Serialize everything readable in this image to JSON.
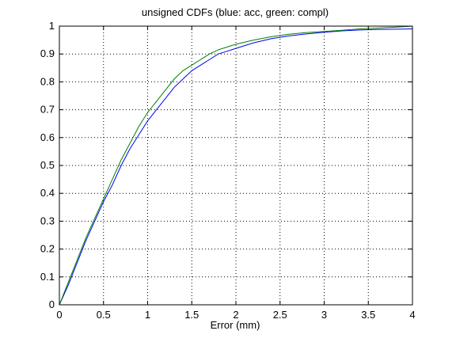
{
  "chart_data": {
    "type": "line",
    "title": "unsigned CDFs (blue: acc, green: compl)",
    "xlabel": "Error (mm)",
    "ylabel": "",
    "xlim": [
      0,
      4
    ],
    "ylim": [
      0,
      1
    ],
    "xticks": [
      0,
      0.5,
      1,
      1.5,
      2,
      2.5,
      3,
      3.5,
      4
    ],
    "xtick_labels": [
      "0",
      "0.5",
      "1",
      "1.5",
      "2",
      "2.5",
      "3",
      "3.5",
      "4"
    ],
    "yticks": [
      0,
      0.1,
      0.2,
      0.3,
      0.4,
      0.5,
      0.6,
      0.7,
      0.8,
      0.9,
      1
    ],
    "ytick_labels": [
      "0",
      "0.1",
      "0.2",
      "0.3",
      "0.4",
      "0.5",
      "0.6",
      "0.7",
      "0.8",
      "0.9",
      "1"
    ],
    "grid": true,
    "grid_style": "dotted",
    "series": [
      {
        "color": "#0000ff",
        "x": [
          0,
          0.1,
          0.2,
          0.3,
          0.4,
          0.5,
          0.6,
          0.7,
          0.8,
          0.9,
          1.0,
          1.1,
          1.2,
          1.3,
          1.4,
          1.5,
          1.6,
          1.7,
          1.8,
          1.9,
          2.0,
          2.2,
          2.4,
          2.6,
          2.8,
          3.0,
          3.2,
          3.4,
          3.6,
          3.8,
          4.0
        ],
        "y": [
          0.0,
          0.07,
          0.15,
          0.23,
          0.3,
          0.37,
          0.43,
          0.5,
          0.56,
          0.61,
          0.66,
          0.7,
          0.74,
          0.78,
          0.81,
          0.84,
          0.86,
          0.88,
          0.9,
          0.91,
          0.92,
          0.94,
          0.955,
          0.965,
          0.972,
          0.978,
          0.983,
          0.986,
          0.988,
          0.989,
          0.99
        ]
      },
      {
        "color": "#008000",
        "x": [
          0,
          0.1,
          0.2,
          0.3,
          0.4,
          0.5,
          0.6,
          0.7,
          0.8,
          0.9,
          1.0,
          1.1,
          1.2,
          1.3,
          1.4,
          1.5,
          1.6,
          1.7,
          1.8,
          1.9,
          2.0,
          2.2,
          2.4,
          2.6,
          2.8,
          3.0,
          3.2,
          3.4,
          3.6,
          3.8,
          4.0
        ],
        "y": [
          0.0,
          0.08,
          0.16,
          0.24,
          0.31,
          0.38,
          0.45,
          0.52,
          0.58,
          0.64,
          0.69,
          0.73,
          0.77,
          0.81,
          0.84,
          0.86,
          0.88,
          0.9,
          0.915,
          0.925,
          0.935,
          0.95,
          0.962,
          0.971,
          0.977,
          0.981,
          0.985,
          0.99,
          0.993,
          0.996,
          1.0
        ]
      }
    ]
  }
}
